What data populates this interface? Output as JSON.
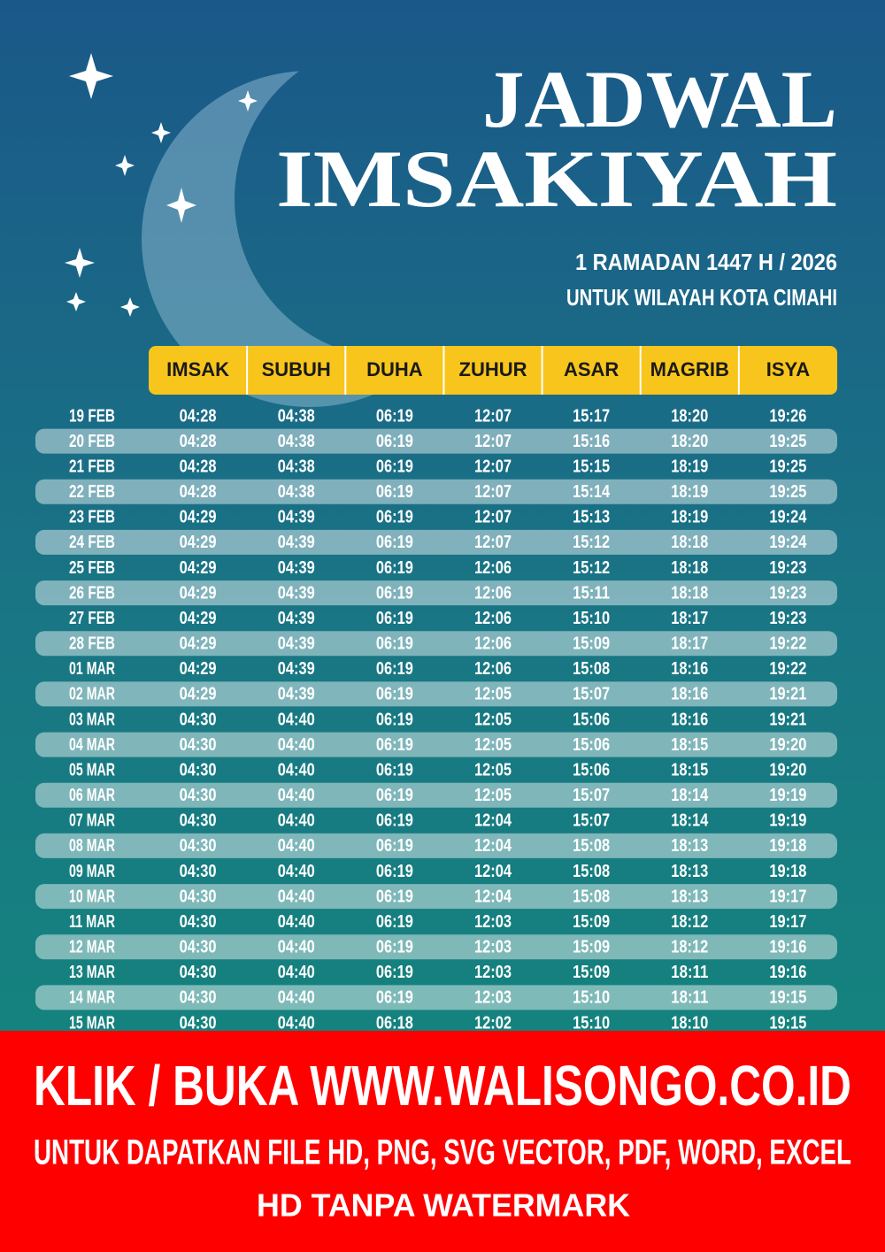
{
  "header": {
    "title_line1": "JADWAL",
    "title_line2": "IMSAKIYAH",
    "subtitle_line1": "1 RAMADAN 1447 H / 2026",
    "subtitle_line2": "UNTUK WILAYAH KOTA CIMAHI"
  },
  "table": {
    "columns": [
      "IMSAK",
      "SUBUH",
      "DUHA",
      "ZUHUR",
      "ASAR",
      "MAGRIB",
      "ISYA"
    ],
    "rows": [
      [
        "19 FEB",
        "04:28",
        "04:38",
        "06:19",
        "12:07",
        "15:17",
        "18:20",
        "19:26"
      ],
      [
        "20 FEB",
        "04:28",
        "04:38",
        "06:19",
        "12:07",
        "15:16",
        "18:20",
        "19:25"
      ],
      [
        "21 FEB",
        "04:28",
        "04:38",
        "06:19",
        "12:07",
        "15:15",
        "18:19",
        "19:25"
      ],
      [
        "22 FEB",
        "04:28",
        "04:38",
        "06:19",
        "12:07",
        "15:14",
        "18:19",
        "19:25"
      ],
      [
        "23 FEB",
        "04:29",
        "04:39",
        "06:19",
        "12:07",
        "15:13",
        "18:19",
        "19:24"
      ],
      [
        "24 FEB",
        "04:29",
        "04:39",
        "06:19",
        "12:07",
        "15:12",
        "18:18",
        "19:24"
      ],
      [
        "25 FEB",
        "04:29",
        "04:39",
        "06:19",
        "12:06",
        "15:12",
        "18:18",
        "19:23"
      ],
      [
        "26 FEB",
        "04:29",
        "04:39",
        "06:19",
        "12:06",
        "15:11",
        "18:18",
        "19:23"
      ],
      [
        "27 FEB",
        "04:29",
        "04:39",
        "06:19",
        "12:06",
        "15:10",
        "18:17",
        "19:23"
      ],
      [
        "28 FEB",
        "04:29",
        "04:39",
        "06:19",
        "12:06",
        "15:09",
        "18:17",
        "19:22"
      ],
      [
        "01 MAR",
        "04:29",
        "04:39",
        "06:19",
        "12:06",
        "15:08",
        "18:16",
        "19:22"
      ],
      [
        "02 MAR",
        "04:29",
        "04:39",
        "06:19",
        "12:05",
        "15:07",
        "18:16",
        "19:21"
      ],
      [
        "03 MAR",
        "04:30",
        "04:40",
        "06:19",
        "12:05",
        "15:06",
        "18:16",
        "19:21"
      ],
      [
        "04 MAR",
        "04:30",
        "04:40",
        "06:19",
        "12:05",
        "15:06",
        "18:15",
        "19:20"
      ],
      [
        "05 MAR",
        "04:30",
        "04:40",
        "06:19",
        "12:05",
        "15:06",
        "18:15",
        "19:20"
      ],
      [
        "06 MAR",
        "04:30",
        "04:40",
        "06:19",
        "12:05",
        "15:07",
        "18:14",
        "19:19"
      ],
      [
        "07 MAR",
        "04:30",
        "04:40",
        "06:19",
        "12:04",
        "15:07",
        "18:14",
        "19:19"
      ],
      [
        "08 MAR",
        "04:30",
        "04:40",
        "06:19",
        "12:04",
        "15:08",
        "18:13",
        "19:18"
      ],
      [
        "09 MAR",
        "04:30",
        "04:40",
        "06:19",
        "12:04",
        "15:08",
        "18:13",
        "19:18"
      ],
      [
        "10 MAR",
        "04:30",
        "04:40",
        "06:19",
        "12:04",
        "15:08",
        "18:13",
        "19:17"
      ],
      [
        "11 MAR",
        "04:30",
        "04:40",
        "06:19",
        "12:03",
        "15:09",
        "18:12",
        "19:17"
      ],
      [
        "12 MAR",
        "04:30",
        "04:40",
        "06:19",
        "12:03",
        "15:09",
        "18:12",
        "19:16"
      ],
      [
        "13 MAR",
        "04:30",
        "04:40",
        "06:19",
        "12:03",
        "15:09",
        "18:11",
        "19:16"
      ],
      [
        "14 MAR",
        "04:30",
        "04:40",
        "06:19",
        "12:03",
        "15:10",
        "18:11",
        "19:15"
      ],
      [
        "15 MAR",
        "04:30",
        "04:40",
        "06:18",
        "12:02",
        "15:10",
        "18:10",
        "19:15"
      ]
    ]
  },
  "banner": {
    "line1": "KLIK / BUKA WWW.WALISONGO.CO.ID",
    "line2": "UNTUK DAPATKAN FILE HD, PNG, SVG VECTOR, PDF, WORD, EXCEL",
    "line3": "HD TANPA WATERMARK"
  }
}
